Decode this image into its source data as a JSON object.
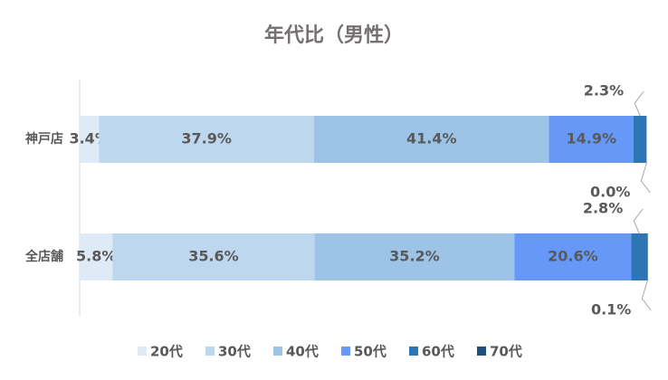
{
  "chart_data": {
    "type": "stacked-bar-horizontal",
    "title": "年代比（男性）",
    "categories": [
      "神戸店",
      "全店舗"
    ],
    "xlim": [
      0,
      100
    ],
    "series": [
      {
        "name": "20代",
        "color": "#deebf7",
        "values": [
          3.4,
          5.8
        ],
        "value_labels": [
          "3.4%",
          "5.8%"
        ]
      },
      {
        "name": "30代",
        "color": "#bdd7ee",
        "values": [
          37.9,
          35.6
        ],
        "value_labels": [
          "37.9%",
          "35.6%"
        ]
      },
      {
        "name": "40代",
        "color": "#9dc3e6",
        "values": [
          41.4,
          35.2
        ],
        "value_labels": [
          "41.4%",
          "35.2%"
        ]
      },
      {
        "name": "50代",
        "color": "#6699f7",
        "values": [
          14.9,
          20.6
        ],
        "value_labels": [
          "14.9%",
          "20.6%"
        ]
      },
      {
        "name": "60代",
        "color": "#2e75b6",
        "values": [
          2.3,
          2.8
        ],
        "value_labels": [
          "2.3%",
          "2.8%"
        ]
      },
      {
        "name": "70代",
        "color": "#1f4e79",
        "values": [
          0.0,
          0.1
        ],
        "value_labels": [
          "0.0%",
          "0.1%"
        ]
      }
    ]
  }
}
